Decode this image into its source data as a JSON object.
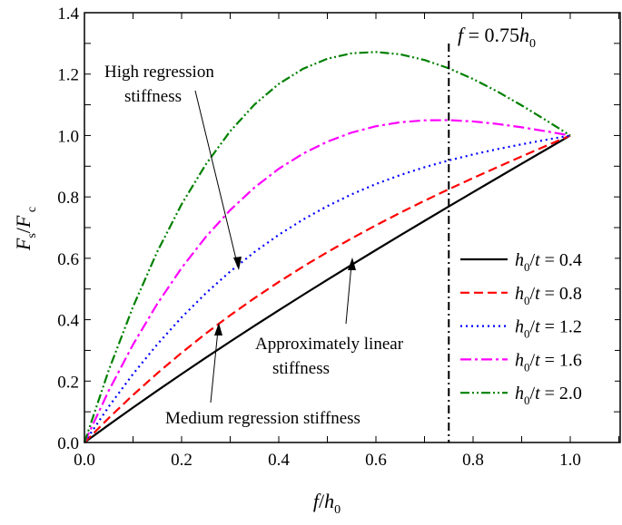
{
  "chart_data": {
    "type": "line",
    "xlabel": "f/h0",
    "ylabel": "Fs/Fc",
    "xlim": [
      0,
      1.1
    ],
    "ylim": [
      0,
      1.4
    ],
    "xticks": [
      "0.0",
      "0.2",
      "0.4",
      "0.6",
      "0.8",
      "1.0"
    ],
    "yticks": [
      "0.0",
      "0.2",
      "0.4",
      "0.6",
      "0.8",
      "1.0",
      "1.2",
      "1.4"
    ],
    "grid": false,
    "legend_placement": "bottom-right",
    "x": [
      0,
      0.05,
      0.1,
      0.15,
      0.2,
      0.25,
      0.3,
      0.35,
      0.4,
      0.45,
      0.5,
      0.55,
      0.6,
      0.65,
      0.7,
      0.75,
      0.8,
      0.85,
      0.9,
      0.95,
      1.0
    ],
    "series": [
      {
        "name": "h0/t = 0.4",
        "color": "#000000",
        "dash": "solid",
        "values": [
          0,
          0.0574,
          0.1137,
          0.1689,
          0.223,
          0.2763,
          0.3286,
          0.38,
          0.4307,
          0.4807,
          0.53,
          0.5787,
          0.6269,
          0.6746,
          0.7218,
          0.7688,
          0.8154,
          0.8617,
          0.9079,
          0.954,
          1
        ]
      },
      {
        "name": "h0/t = 0.8",
        "color": "#ff0000",
        "dash": "dash",
        "values": [
          0,
          0.0796,
          0.1547,
          0.2255,
          0.2922,
          0.355,
          0.4142,
          0.4701,
          0.5229,
          0.5728,
          0.62,
          0.6648,
          0.7075,
          0.7483,
          0.7874,
          0.825,
          0.8614,
          0.8969,
          0.9317,
          0.966,
          1
        ]
      },
      {
        "name": "h0/t = 1.2",
        "color": "#0000ff",
        "dash": "dot",
        "values": [
          0,
          0.1167,
          0.2231,
          0.3198,
          0.4074,
          0.4863,
          0.557,
          0.6203,
          0.6765,
          0.7262,
          0.77,
          0.8084,
          0.8419,
          0.8711,
          0.8966,
          0.9188,
          0.9382,
          0.9556,
          0.9713,
          0.9859,
          1
        ]
      },
      {
        "name": "h0/t = 1.6",
        "color": "#ff00ff",
        "dash": "dashdot",
        "values": [
          0,
          0.1686,
          0.3189,
          0.4519,
          0.5686,
          0.67,
          0.757,
          0.8305,
          0.8915,
          0.941,
          0.98,
          1.0094,
          1.0301,
          1.0431,
          1.0494,
          1.05,
          1.0458,
          1.0377,
          1.0267,
          1.0138,
          1
        ]
      },
      {
        "name": "h0/t = 2.0",
        "color": "#008000",
        "dash": "dashdotdot",
        "values": [
          0,
          0.2353,
          0.442,
          0.6218,
          0.776,
          0.9063,
          1.014,
          1.1008,
          1.168,
          1.2173,
          1.25,
          1.2678,
          1.272,
          1.2643,
          1.246,
          1.2188,
          1.184,
          1.1433,
          1.098,
          1.0498,
          1
        ]
      }
    ],
    "vline": {
      "x": 0.75,
      "label": "f = 0.75h0"
    },
    "annotations": [
      {
        "text_lines": [
          "High regression",
          "stiffness"
        ]
      },
      {
        "text_lines": [
          "Approximately linear",
          "stiffness"
        ]
      },
      {
        "text_lines": [
          "Medium regression stiffness"
        ]
      }
    ]
  }
}
